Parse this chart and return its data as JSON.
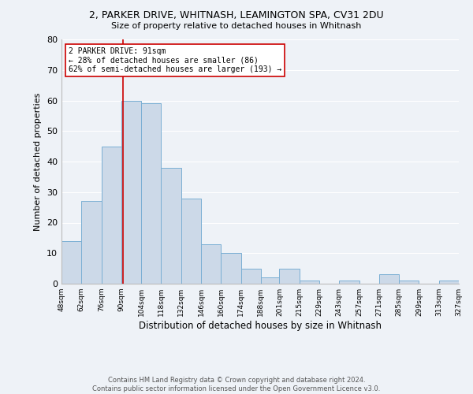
{
  "title": "2, PARKER DRIVE, WHITNASH, LEAMINGTON SPA, CV31 2DU",
  "subtitle": "Size of property relative to detached houses in Whitnash",
  "xlabel": "Distribution of detached houses by size in Whitnash",
  "ylabel": "Number of detached properties",
  "bar_color": "#ccd9e8",
  "bar_edge_color": "#7aafd4",
  "background_color": "#eef2f7",
  "grid_color": "#ffffff",
  "vline_x": 91,
  "vline_color": "#cc0000",
  "annotation_text": "2 PARKER DRIVE: 91sqm\n← 28% of detached houses are smaller (86)\n62% of semi-detached houses are larger (193) →",
  "annotation_box_color": "#cc0000",
  "bin_edges": [
    48,
    62,
    76,
    90,
    104,
    118,
    132,
    146,
    160,
    174,
    188,
    201,
    215,
    229,
    243,
    257,
    271,
    285,
    299,
    313,
    327
  ],
  "bin_labels": [
    "48sqm",
    "62sqm",
    "76sqm",
    "90sqm",
    "104sqm",
    "118sqm",
    "132sqm",
    "146sqm",
    "160sqm",
    "174sqm",
    "188sqm",
    "201sqm",
    "215sqm",
    "229sqm",
    "243sqm",
    "257sqm",
    "271sqm",
    "285sqm",
    "299sqm",
    "313sqm",
    "327sqm"
  ],
  "bar_heights": [
    14,
    27,
    45,
    60,
    59,
    38,
    28,
    13,
    10,
    5,
    2,
    5,
    1,
    0,
    1,
    0,
    3,
    1,
    0,
    1
  ],
  "ylim": [
    0,
    80
  ],
  "yticks": [
    0,
    10,
    20,
    30,
    40,
    50,
    60,
    70,
    80
  ],
  "footer_text": "Contains HM Land Registry data © Crown copyright and database right 2024.\nContains public sector information licensed under the Open Government Licence v3.0.",
  "figsize": [
    6.0,
    5.0
  ],
  "dpi": 100
}
